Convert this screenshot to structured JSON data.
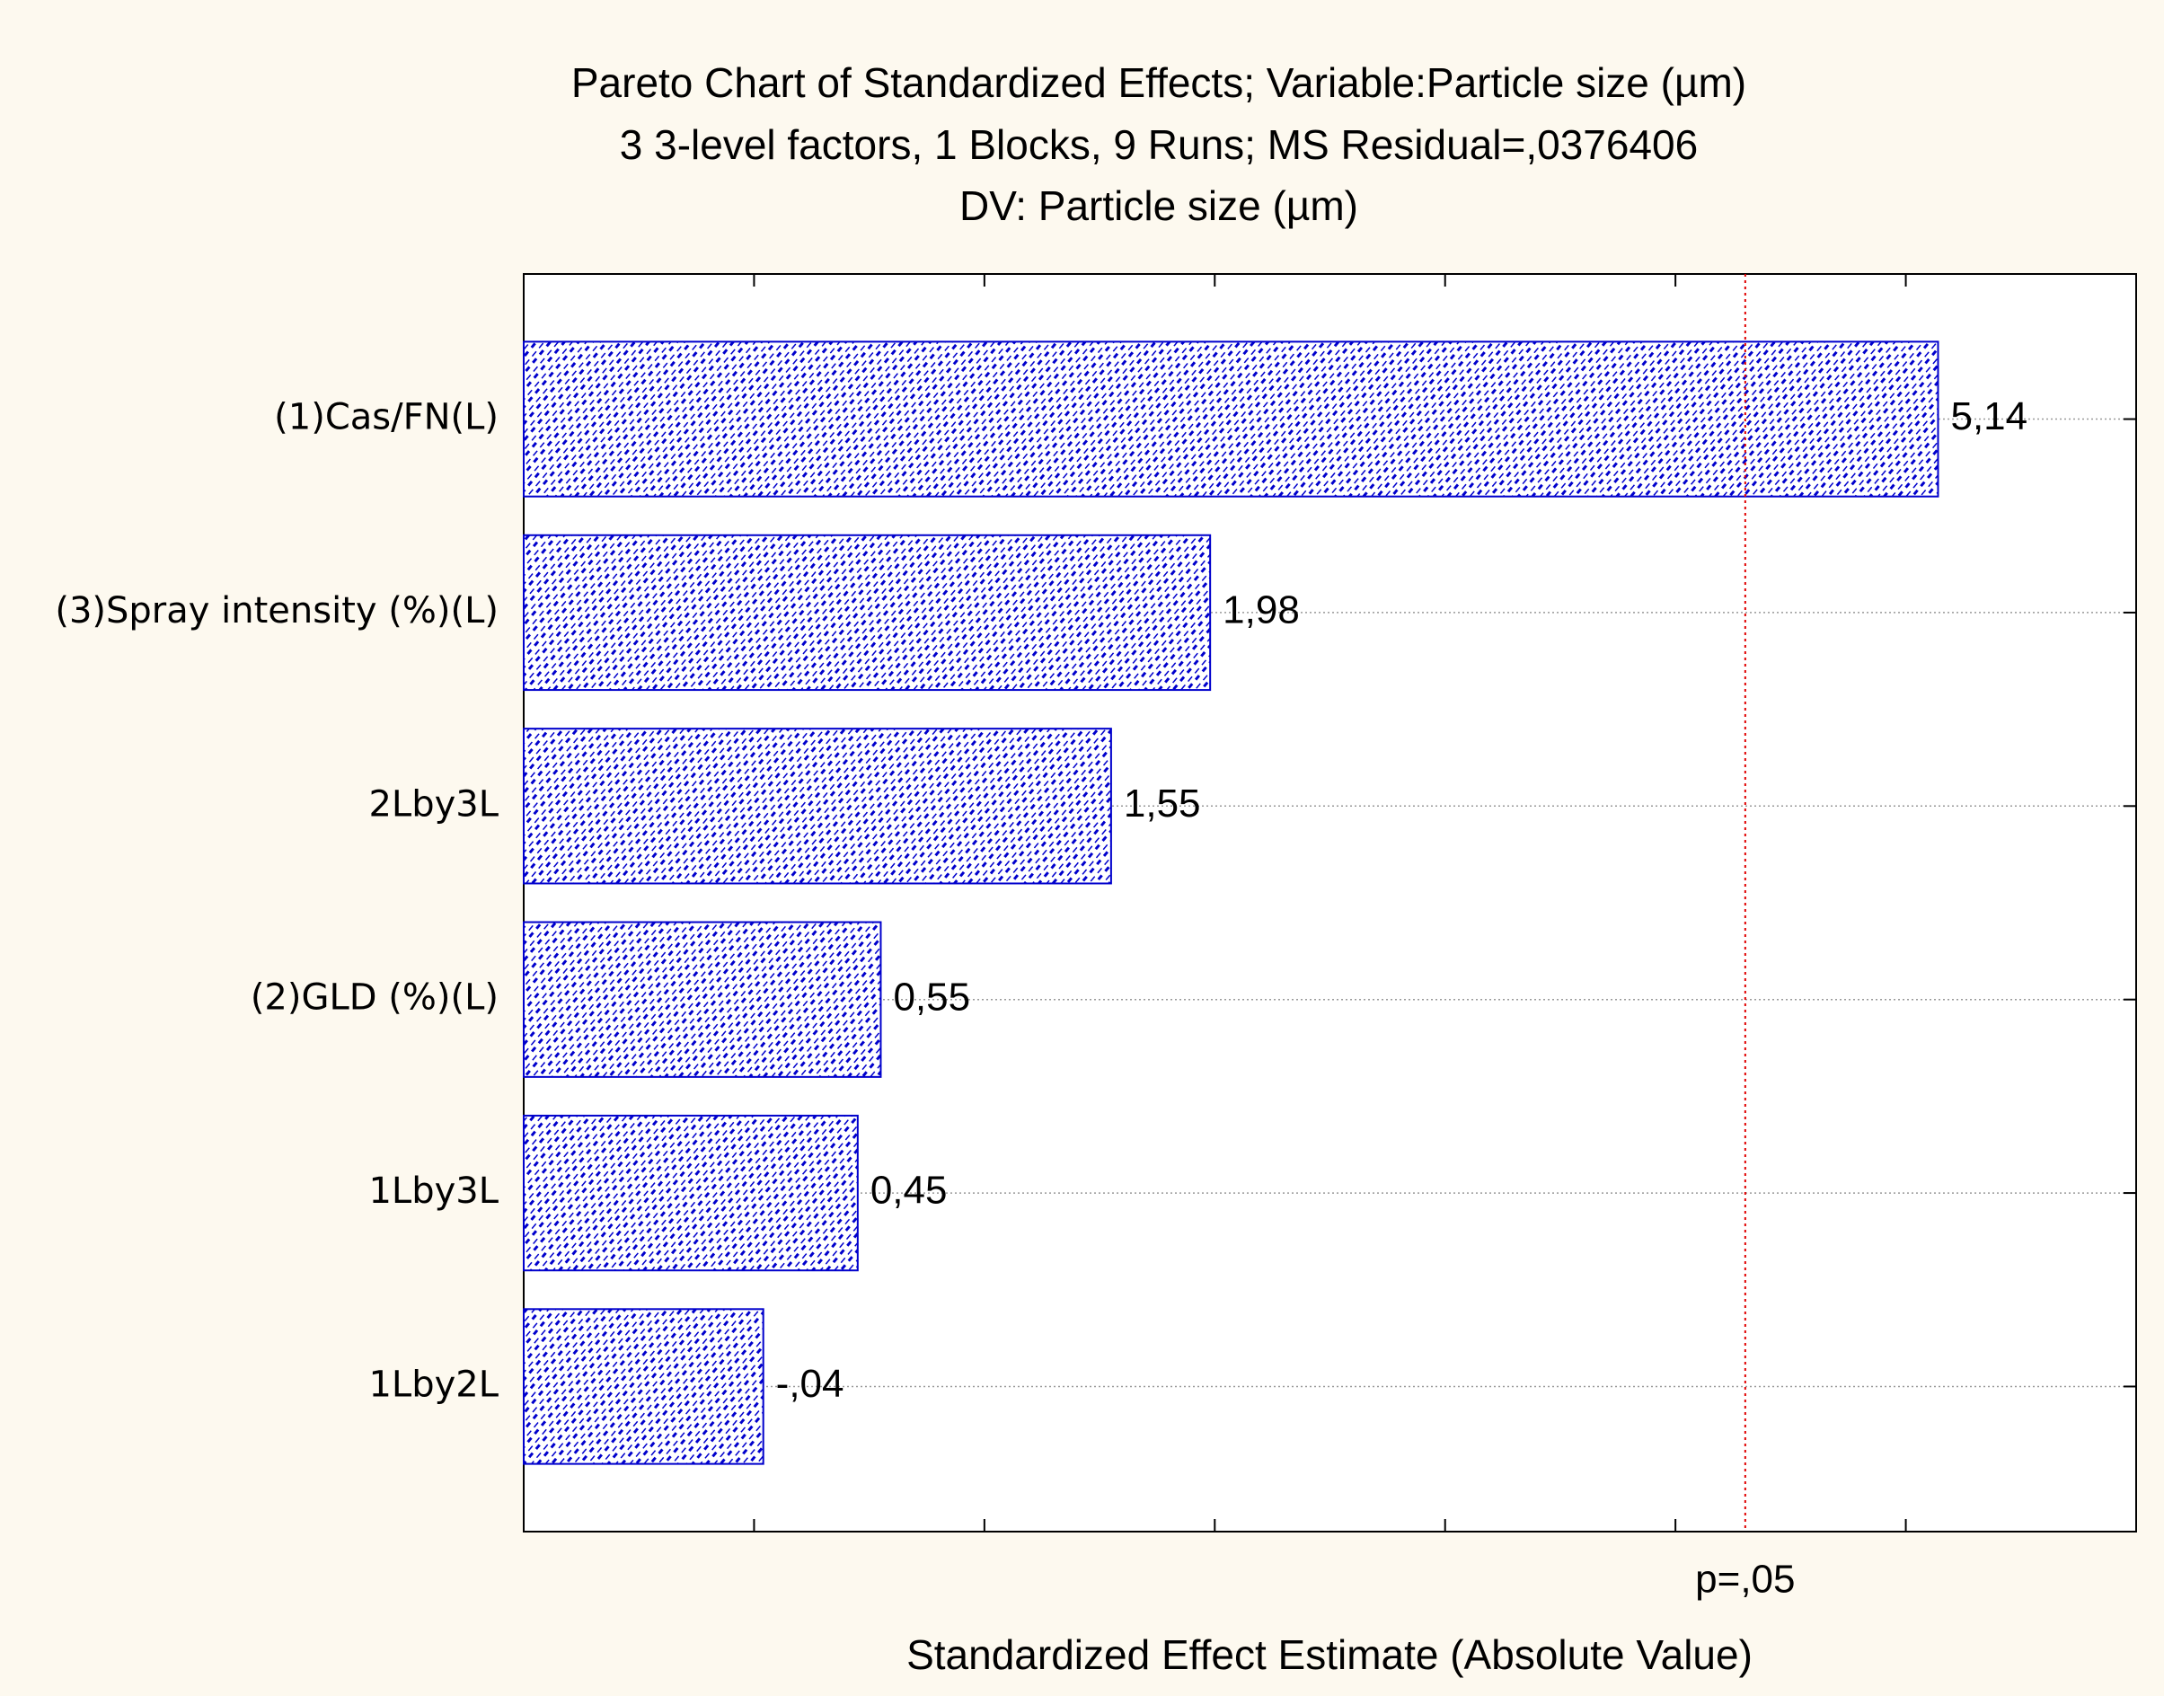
{
  "chart_data": {
    "type": "pareto",
    "title": "Pareto Chart of Standardized Effects; Variable:Particle size (µm)",
    "subtitle": [
      "3 3-level factors, 1 Blocks, 9 Runs; MS Residual=,0376406",
      "DV: Particle size (µm)"
    ],
    "x_label": "Standardized Effect Estimate (Absolute Value)",
    "categories": [
      "(1)Cas/FN(L)",
      "(3)Spray intensity (%)(L)",
      "2Lby3L",
      "(2)GLD (%)(L)",
      "1Lby3L",
      "1Lby2L"
    ],
    "values": [
      5.14,
      1.98,
      1.55,
      0.55,
      0.45,
      -0.04
    ],
    "value_labels": [
      "5,14",
      "1,98",
      "1,55",
      "0,55",
      "0,45",
      "-,04"
    ],
    "color": "#0000cc",
    "xlim": [
      -1,
      6
    ],
    "xticks": [
      0,
      1,
      2,
      3,
      4,
      5
    ],
    "reference_line": {
      "value": 4.303,
      "label": "p=,05",
      "color": "#e00000"
    },
    "grid": true
  }
}
